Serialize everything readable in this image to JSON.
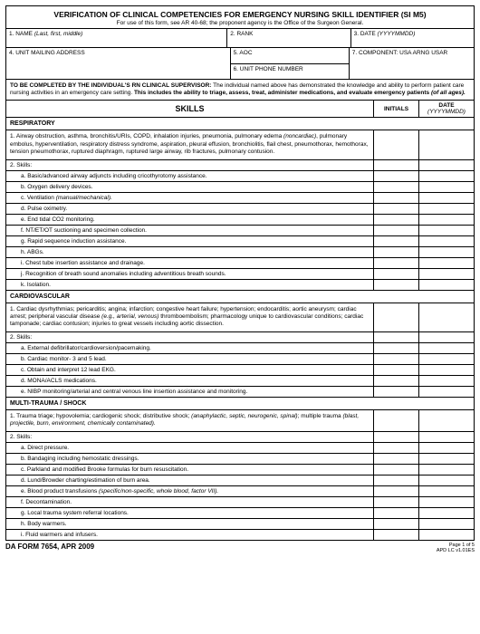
{
  "form": {
    "title": "VERIFICATION OF CLINICAL COMPETENCIES FOR EMERGENCY NURSING SKILL IDENTIFIER (SI M5)",
    "subtitle": "For use of this form, see AR 40-68; the proponent agency is the Office of the Surgeon General."
  },
  "header_fields": {
    "name_label": "1. NAME",
    "name_hint": "(Last, first, middle)",
    "rank_label": "2. RANK",
    "date_label": "3. DATE",
    "date_hint": "(YYYYMMDD)",
    "addr_label": "4. UNIT MAILING ADDRESS",
    "aoc_label": "5. AOC",
    "phone_label": "6. UNIT PHONE NUMBER",
    "component_label": "7. COMPONENT: USA ARNG USAR"
  },
  "instruction": {
    "lead_bold": "TO BE COMPLETED BY THE INDIVIDUAL'S RN CLINICAL SUPERVISOR:",
    "lead_rest": " The individual named above has demonstrated the knowledge and ability to perform patient care nursing activities in an emergency care setting. ",
    "emph": "This includes the ability to triage, assess, treat, administer medications, and evaluate emergency patients ",
    "emph_italic": "(of all ages)."
  },
  "skills_header": {
    "title": "SKILLS",
    "initials": "INITIALS",
    "date": "DATE",
    "date_hint": "(YYYYMMDD)"
  },
  "sections": [
    {
      "name": "RESPIRATORY",
      "intro_parts": [
        {
          "t": "1. Airway obstruction, asthma, bronchitis/URIs, COPD, inhalation injuries, pneumonia, pulmonary edema "
        },
        {
          "t": "(noncardiac)",
          "i": true
        },
        {
          "t": ", pulmonary embolus, hyperventilation, respiratory distress syndrome, aspiration, pleural effusion, bronchiolitis, flail chest, pneumothorax, hemothorax, tension pneumothorax, ruptured diaphragm, ruptured large airway, rib fractures, pulmonary contusion."
        }
      ],
      "skills_label": "2. Skills:",
      "skills": [
        {
          "l": "a.",
          "t": "Basic/advanced airway adjuncts including cricothyrotomy assistance."
        },
        {
          "l": "b.",
          "t": "Oxygen delivery devices."
        },
        {
          "l": "c.",
          "t": "Ventilation ",
          "ti": "(manual/mechanical)."
        },
        {
          "l": "d.",
          "t": "Pulse oximetry."
        },
        {
          "l": "e.",
          "t": "End tidal CO2 monitoring."
        },
        {
          "l": "f.",
          "t": "NT/ET/OT suctioning and specimen collection."
        },
        {
          "l": "g.",
          "t": "Rapid sequence induction assistance."
        },
        {
          "l": "h.",
          "t": "ABGs."
        },
        {
          "l": "i.",
          "t": "Chest tube insertion assistance and drainage."
        },
        {
          "l": "j.",
          "t": "Recognition of breath sound anomalies including adventitious breath sounds."
        },
        {
          "l": "k.",
          "t": "Isolation."
        }
      ]
    },
    {
      "name": "CARDIOVASCULAR",
      "intro_parts": [
        {
          "t": "1. Cardiac dysrhythmias; pericarditis; angina; infarction; congestive heart failure; hypertension; endocarditis; aortic aneurysm; cardiac arrest; peripheral vascular disease "
        },
        {
          "t": "(e.g., arterial, venous)",
          "i": true
        },
        {
          "t": " thromboembolism; pharmacology unique to cardiovascular conditions; cardiac tamponade; cardiac contusion; injuries to great vessels including aortic dissection."
        }
      ],
      "skills_label": "2. Skills:",
      "skills": [
        {
          "l": "a.",
          "t": "External defibrillator/cardioversion/pacemaking."
        },
        {
          "l": "b.",
          "t": "Cardiac monitor- 3 and 5 lead."
        },
        {
          "l": "c.",
          "t": "Obtain and interpret 12 lead EKG."
        },
        {
          "l": "d.",
          "t": "MONA/ACLS medications."
        },
        {
          "l": "e.",
          "t": "NIBP monitoring/arterial and central venous line insertion assistance and monitoring."
        }
      ]
    },
    {
      "name": "MULTI-TRAUMA / SHOCK",
      "intro_parts": [
        {
          "t": "1. Trauma triage; hypovolemia; cardiogenic shock; distributive shock; "
        },
        {
          "t": "(anaphylactic, septic, neurogenic, spinal)",
          "i": true
        },
        {
          "t": "; multiple trauma "
        },
        {
          "t": "(blast, projectile, burn, environment, chemically contaminated).",
          "i": true
        }
      ],
      "skills_label": "2. Skills:",
      "skills": [
        {
          "l": "a.",
          "t": "Direct pressure."
        },
        {
          "l": "b.",
          "t": "Bandaging including hemostatic dressings."
        },
        {
          "l": "c.",
          "t": "Parkland and modified Brooke formulas for burn resuscitation."
        },
        {
          "l": "d.",
          "t": "Lund/Browder charting/estimation of burn area."
        },
        {
          "l": "e.",
          "t": "Blood product transfusions ",
          "ti": "(specific/non-specific, whole blood, factor VII)."
        },
        {
          "l": "f.",
          "t": "Decontamination."
        },
        {
          "l": "g.",
          "t": "Local trauma system referral locations."
        },
        {
          "l": "h.",
          "t": "Body warmers."
        },
        {
          "l": "i.",
          "t": "Fluid warmers and infusers."
        }
      ],
      "last_no_border": true
    }
  ],
  "footer": {
    "left": "DA FORM 7654, APR 2009",
    "right_top": "Page 1 of 5",
    "right_bot": "APD LC v1.01ES"
  }
}
